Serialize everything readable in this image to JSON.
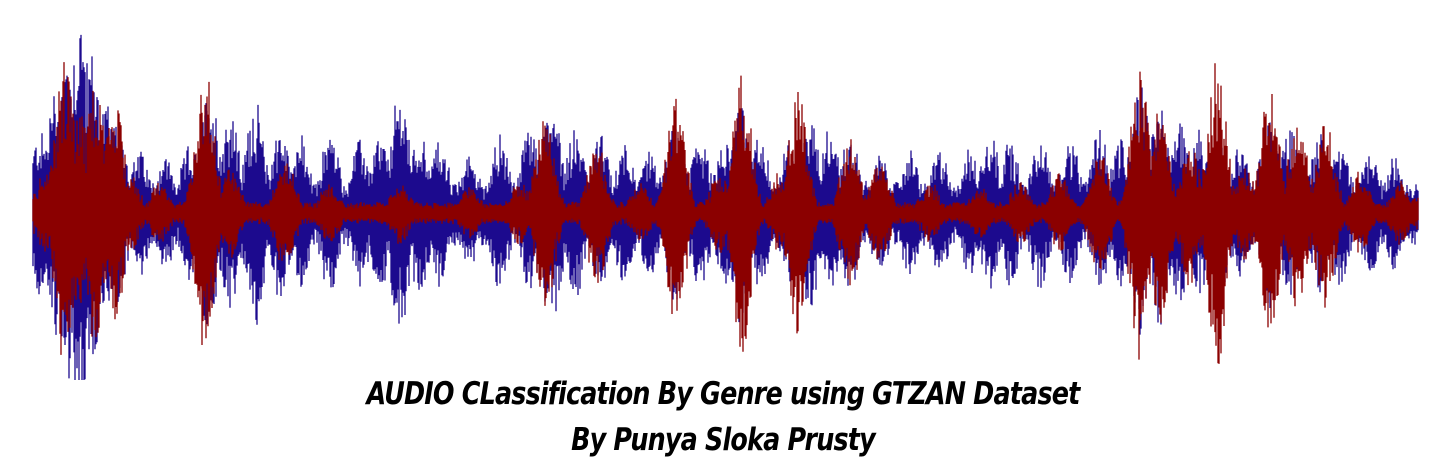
{
  "image": {
    "waveform": {
      "channels": [
        {
          "name": "channel-blue",
          "color": "#1c0a8e"
        },
        {
          "name": "channel-red",
          "color": "#8b0000"
        }
      ]
    },
    "title": "AUDIO CLassification By Genre using GTZAN Dataset",
    "author": "By Punya Sloka Prusty"
  }
}
